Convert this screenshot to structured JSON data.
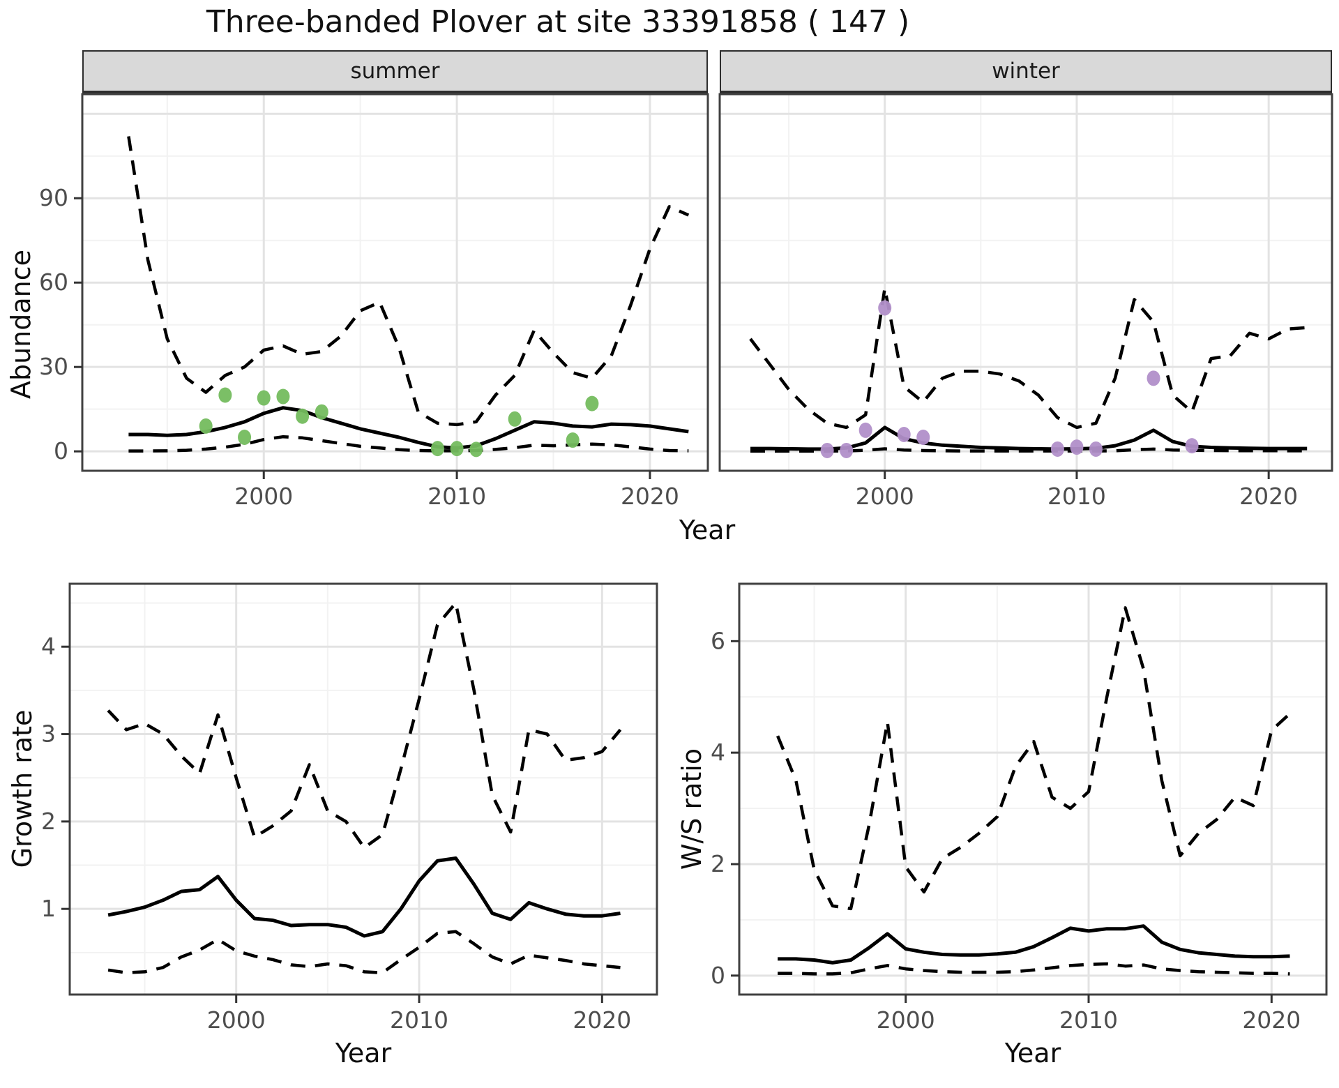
{
  "title": "Three-banded Plover at site 33391858 ( 147 )",
  "facets": {
    "summer": "summer",
    "winter": "winter"
  },
  "axis_titles": {
    "x": "Year",
    "abundance": "Abundance",
    "growth": "Growth rate",
    "ws": "W/S ratio"
  },
  "colors": {
    "summer_points": "#74BC5E",
    "winter_points": "#B18FC9",
    "line": "#000000",
    "grid_major": "#E3E3E3",
    "grid_minor": "#F2F2F2",
    "tick_label": "#4D4D4D",
    "panel_border": "#404040",
    "strip_bg": "#D9D9D9"
  },
  "chart_data": [
    {
      "panel_id": "panel-summer",
      "type": "line",
      "facet": "summer",
      "xlabel": "Year",
      "ylabel": "Abundance",
      "x": [
        1993,
        1994,
        1995,
        1996,
        1997,
        1998,
        1999,
        2000,
        2001,
        2002,
        2003,
        2004,
        2005,
        2006,
        2007,
        2008,
        2009,
        2010,
        2011,
        2012,
        2013,
        2014,
        2015,
        2016,
        2017,
        2018,
        2019,
        2020,
        2021,
        2022
      ],
      "series": [
        {
          "name": "upper-95-ci",
          "style": "dashed",
          "values": [
            112,
            68,
            40,
            26,
            21,
            27,
            30,
            36,
            37.5,
            34.5,
            35.5,
            41,
            50,
            53,
            37,
            14,
            10,
            9.5,
            10.5,
            20,
            27,
            43,
            35,
            28,
            26,
            34,
            52,
            72,
            87,
            84
          ]
        },
        {
          "name": "modelled-mean",
          "style": "solid",
          "values": [
            6,
            6,
            5.7,
            6,
            7,
            8.5,
            10.5,
            13.5,
            15.5,
            14.5,
            12,
            10,
            8,
            6.5,
            5,
            3.2,
            1.6,
            1.2,
            2,
            4.5,
            7.5,
            10.5,
            10,
            9,
            8.7,
            9.7,
            9.5,
            9,
            8,
            7
          ]
        },
        {
          "name": "lower-95-ci",
          "style": "dashed",
          "values": [
            0.15,
            0.15,
            0.2,
            0.4,
            0.8,
            1.5,
            2.5,
            4.2,
            5.2,
            4.8,
            3.8,
            2.8,
            1.8,
            1.2,
            0.6,
            0.3,
            0.2,
            0.2,
            0.3,
            0.7,
            1.3,
            2.2,
            2,
            2.3,
            2.6,
            2.3,
            1.6,
            0.8,
            0.3,
            0.2
          ]
        }
      ],
      "points": {
        "name": "observed-counts-summer",
        "color_key": "summer_points",
        "x": [
          1997,
          1998,
          1999,
          2000,
          2001,
          2002,
          2003,
          2009,
          2010,
          2011,
          2013,
          2016,
          2017
        ],
        "y": [
          9,
          20,
          5,
          19,
          19.5,
          12.5,
          14,
          1,
          1,
          0.7,
          11.5,
          4,
          17
        ]
      },
      "xlim": [
        1990.6,
        2023.0
      ],
      "ylim": [
        -6.9,
        127
      ],
      "xticks": [
        2000,
        2010,
        2020
      ],
      "xticks_minor": [
        1995,
        2005,
        2015
      ],
      "yticks": [
        0,
        30,
        60,
        90
      ],
      "ygrid_extra_major": [
        120
      ],
      "yticks_minor": [
        15,
        45,
        75,
        105
      ],
      "show_y_axis": true
    },
    {
      "panel_id": "panel-winter",
      "type": "line",
      "facet": "winter",
      "xlabel": "Year",
      "ylabel": "Abundance",
      "x": [
        1993,
        1994,
        1995,
        1996,
        1997,
        1998,
        1999,
        2000,
        2001,
        2002,
        2003,
        2004,
        2005,
        2006,
        2007,
        2008,
        2009,
        2010,
        2011,
        2012,
        2013,
        2014,
        2015,
        2016,
        2017,
        2018,
        2019,
        2020,
        2021,
        2022
      ],
      "series": [
        {
          "name": "upper-95-ci",
          "style": "dashed",
          "values": [
            40,
            31,
            22,
            15,
            10,
            8.5,
            13,
            58,
            23,
            17.5,
            26,
            28.5,
            28.5,
            27.5,
            25,
            20,
            12,
            8.5,
            10,
            26,
            54,
            46,
            20,
            14,
            33,
            34,
            42,
            40,
            43.5,
            44
          ]
        },
        {
          "name": "modelled-mean",
          "style": "solid",
          "values": [
            1,
            1,
            0.9,
            0.8,
            0.8,
            1.2,
            3,
            8.5,
            4.5,
            3,
            2.2,
            1.8,
            1.4,
            1.2,
            1,
            0.9,
            0.8,
            0.9,
            1.1,
            2,
            4,
            7.5,
            3.5,
            1.8,
            1.4,
            1.2,
            1.1,
            1,
            1,
            1
          ]
        },
        {
          "name": "lower-95-ci",
          "style": "dashed",
          "values": [
            0.1,
            0.1,
            0.1,
            0.1,
            0.1,
            0.15,
            0.4,
            0.9,
            0.5,
            0.3,
            0.2,
            0.15,
            0.15,
            0.15,
            0.15,
            0.15,
            0.15,
            0.15,
            0.15,
            0.2,
            0.6,
            0.8,
            0.5,
            0.35,
            0.3,
            0.25,
            0.25,
            0.25,
            0.2,
            0.2
          ]
        }
      ],
      "points": {
        "name": "observed-counts-winter",
        "color_key": "winter_points",
        "x": [
          1997,
          1998,
          1999,
          2000,
          2001,
          2002,
          2009,
          2010,
          2011,
          2014,
          2016
        ],
        "y": [
          0.3,
          0.3,
          7.5,
          51,
          6,
          5,
          0.8,
          1.5,
          0.8,
          26,
          2
        ]
      },
      "xlim": [
        1991.4,
        2023.3
      ],
      "ylim": [
        -6.9,
        127
      ],
      "xticks": [
        2000,
        2010,
        2020
      ],
      "xticks_minor": [
        1995,
        2005,
        2015
      ],
      "yticks": [
        0,
        30,
        60,
        90
      ],
      "ygrid_extra_major": [
        120
      ],
      "yticks_minor": [
        15,
        45,
        75,
        105
      ],
      "show_y_axis": false
    },
    {
      "panel_id": "panel-growth",
      "type": "line",
      "facet": "",
      "xlabel": "Year",
      "ylabel": "Growth rate",
      "x": [
        1993,
        1994,
        1995,
        1996,
        1997,
        1998,
        1999,
        2000,
        2001,
        2002,
        2003,
        2004,
        2005,
        2006,
        2007,
        2008,
        2009,
        2010,
        2011,
        2012,
        2013,
        2014,
        2015,
        2016,
        2017,
        2018,
        2019,
        2020,
        2021
      ],
      "series": [
        {
          "name": "upper-95-ci",
          "style": "dashed",
          "values": [
            3.27,
            3.05,
            3.12,
            3.0,
            2.75,
            2.55,
            3.22,
            2.5,
            1.82,
            1.95,
            2.12,
            2.65,
            2.12,
            2.0,
            1.7,
            1.85,
            2.6,
            3.4,
            4.25,
            4.5,
            3.5,
            2.3,
            1.88,
            3.05,
            3.0,
            2.7,
            2.73,
            2.8,
            3.05
          ]
        },
        {
          "name": "modelled-mean",
          "style": "solid",
          "values": [
            0.93,
            0.97,
            1.02,
            1.1,
            1.2,
            1.22,
            1.37,
            1.1,
            0.89,
            0.87,
            0.81,
            0.82,
            0.82,
            0.79,
            0.69,
            0.74,
            1.0,
            1.32,
            1.55,
            1.58,
            1.28,
            0.95,
            0.88,
            1.07,
            1.0,
            0.94,
            0.92,
            0.92,
            0.95
          ]
        },
        {
          "name": "lower-95-ci",
          "style": "dashed",
          "values": [
            0.3,
            0.27,
            0.28,
            0.33,
            0.45,
            0.53,
            0.65,
            0.52,
            0.46,
            0.42,
            0.36,
            0.34,
            0.37,
            0.35,
            0.28,
            0.27,
            0.42,
            0.56,
            0.72,
            0.74,
            0.6,
            0.45,
            0.37,
            0.47,
            0.44,
            0.41,
            0.37,
            0.35,
            0.33
          ]
        }
      ],
      "xlim": [
        1990.9,
        2023.0
      ],
      "ylim": [
        0.02,
        4.72
      ],
      "xticks": [
        2000,
        2010,
        2020
      ],
      "xticks_minor": [
        1995,
        2005,
        2015
      ],
      "yticks": [
        1,
        2,
        3,
        4
      ],
      "ygrid_extra_major": [],
      "yticks_minor": [
        0.5,
        1.5,
        2.5,
        3.5,
        4.5
      ],
      "show_y_axis": true
    },
    {
      "panel_id": "panel-ws",
      "type": "line",
      "facet": "",
      "xlabel": "Year",
      "ylabel": "W/S ratio",
      "x": [
        1993,
        1994,
        1995,
        1996,
        1997,
        1998,
        1999,
        2000,
        2001,
        2002,
        2003,
        2004,
        2005,
        2006,
        2007,
        2008,
        2009,
        2010,
        2011,
        2012,
        2013,
        2014,
        2015,
        2016,
        2017,
        2018,
        2019,
        2020,
        2021
      ],
      "series": [
        {
          "name": "upper-95-ci",
          "style": "dashed",
          "values": [
            4.3,
            3.5,
            1.9,
            1.25,
            1.2,
            2.7,
            4.55,
            1.95,
            1.5,
            2.1,
            2.3,
            2.55,
            2.85,
            3.75,
            4.2,
            3.2,
            3.0,
            3.3,
            5.0,
            6.6,
            5.5,
            3.5,
            2.15,
            2.55,
            2.8,
            3.2,
            3.05,
            4.4,
            4.7
          ]
        },
        {
          "name": "modelled-mean",
          "style": "solid",
          "values": [
            0.3,
            0.3,
            0.28,
            0.23,
            0.28,
            0.5,
            0.75,
            0.48,
            0.42,
            0.38,
            0.37,
            0.37,
            0.39,
            0.42,
            0.52,
            0.68,
            0.85,
            0.8,
            0.84,
            0.84,
            0.89,
            0.6,
            0.47,
            0.41,
            0.38,
            0.35,
            0.34,
            0.34,
            0.35
          ]
        },
        {
          "name": "lower-95-ci",
          "style": "dashed",
          "values": [
            0.04,
            0.04,
            0.03,
            0.03,
            0.05,
            0.12,
            0.18,
            0.12,
            0.09,
            0.07,
            0.06,
            0.06,
            0.06,
            0.07,
            0.1,
            0.14,
            0.18,
            0.2,
            0.21,
            0.17,
            0.19,
            0.12,
            0.09,
            0.07,
            0.06,
            0.05,
            0.04,
            0.04,
            0.03
          ]
        }
      ],
      "xlim": [
        1990.9,
        2023.0
      ],
      "ylim": [
        -0.34,
        7.03
      ],
      "xticks": [
        2000,
        2010,
        2020
      ],
      "xticks_minor": [
        1995,
        2005,
        2015
      ],
      "yticks": [
        0,
        2,
        4,
        6
      ],
      "ygrid_extra_major": [],
      "yticks_minor": [
        1,
        3,
        5,
        7
      ],
      "show_y_axis": true
    }
  ]
}
